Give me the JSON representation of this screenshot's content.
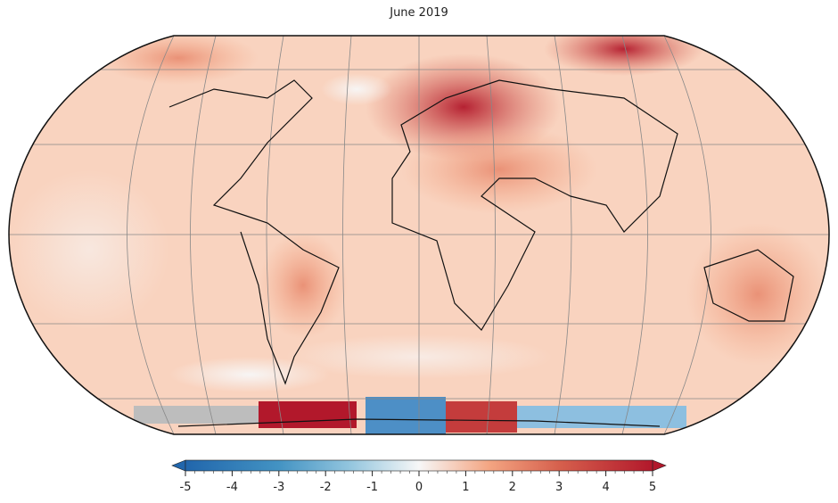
{
  "subtitle": "June 2019",
  "colorbar": {
    "range": [
      -5,
      5
    ],
    "ticks": [
      -5,
      -4,
      -3,
      -2,
      -1,
      0,
      1,
      2,
      3,
      4,
      5
    ],
    "minor_step": 0.2
  }
}
